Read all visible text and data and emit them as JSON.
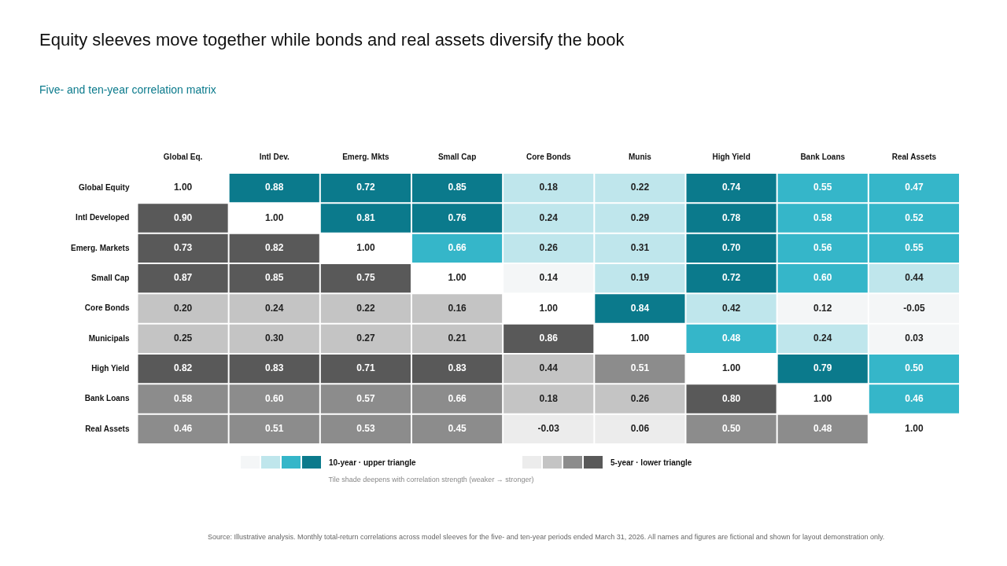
{
  "chart_data": {
    "type": "heatmap",
    "title": "Equity sleeves move together while bonds and real assets diversify the book",
    "subtitle": "Five- and ten-year correlation matrix",
    "categories": [
      "Global Eq.",
      "Intl Dev.",
      "Emerg. Mkts",
      "Small Cap",
      "Core Bonds",
      "Munis",
      "High Yield",
      "Bank Loans",
      "Real Assets"
    ],
    "y_categories": [
      "Global Equity",
      "Intl Developed",
      "Emerg. Markets",
      "Small Cap",
      "Core Bonds",
      "Municipals",
      "High Yield",
      "Bank Loans",
      "Real Assets"
    ],
    "cells": [
      [
        1.0,
        0.88,
        0.72,
        0.85,
        0.18,
        0.22,
        0.74,
        0.55,
        0.47
      ],
      [
        0.9,
        1.0,
        0.81,
        0.76,
        0.24,
        0.29,
        0.78,
        0.58,
        0.52
      ],
      [
        0.73,
        0.82,
        1.0,
        0.66,
        0.26,
        0.31,
        0.7,
        0.56,
        0.55
      ],
      [
        0.87,
        0.85,
        0.75,
        1.0,
        0.14,
        0.19,
        0.72,
        0.6,
        0.44
      ],
      [
        0.2,
        0.24,
        0.22,
        0.16,
        1.0,
        0.84,
        0.42,
        0.12,
        -0.05
      ],
      [
        0.25,
        0.3,
        0.27,
        0.21,
        0.86,
        1.0,
        0.48,
        0.24,
        0.03
      ],
      [
        0.82,
        0.83,
        0.71,
        0.83,
        0.44,
        0.51,
        1.0,
        0.79,
        0.5
      ],
      [
        0.58,
        0.6,
        0.57,
        0.66,
        0.18,
        0.26,
        0.8,
        1.0,
        0.46
      ],
      [
        0.46,
        0.51,
        0.53,
        0.45,
        -0.03,
        0.06,
        0.5,
        0.48,
        1.0
      ]
    ],
    "cell_labels": [
      [
        "1.00",
        "0.88",
        "0.72",
        "0.85",
        "0.18",
        "0.22",
        "0.74",
        "0.55",
        "0.47"
      ],
      [
        "0.90",
        "1.00",
        "0.81",
        "0.76",
        "0.24",
        "0.29",
        "0.78",
        "0.58",
        "0.52"
      ],
      [
        "0.73",
        "0.82",
        "1.00",
        "0.66",
        "0.26",
        "0.31",
        "0.70",
        "0.56",
        "0.55"
      ],
      [
        "0.87",
        "0.85",
        "0.75",
        "1.00",
        "0.14",
        "0.19",
        "0.72",
        "0.60",
        "0.44"
      ],
      [
        "0.20",
        "0.24",
        "0.22",
        "0.16",
        "1.00",
        "0.84",
        "0.42",
        "0.12",
        "-0.05"
      ],
      [
        "0.25",
        "0.30",
        "0.27",
        "0.21",
        "0.86",
        "1.00",
        "0.48",
        "0.24",
        "0.03"
      ],
      [
        "0.82",
        "0.83",
        "0.71",
        "0.83",
        "0.44",
        "0.51",
        "1.00",
        "0.79",
        "0.50"
      ],
      [
        "0.58",
        "0.60",
        "0.57",
        "0.66",
        "0.18",
        "0.26",
        "0.80",
        "1.00",
        "0.46"
      ],
      [
        "0.46",
        "0.51",
        "0.53",
        "0.45",
        "-0.03",
        "0.06",
        "0.50",
        "0.48",
        "1.00"
      ]
    ],
    "annotations": [
      "10-year · upper triangle",
      "5-year · lower triangle",
      "Tile shade deepens with correlation strength  (weaker → stronger)",
      "Source: Illustrative analysis. Monthly total-return correlations across model sleeves for the five- and ten-year periods ended March 31, 2026. All names and figures are fictional and shown for layout demonstration only."
    ]
  }
}
